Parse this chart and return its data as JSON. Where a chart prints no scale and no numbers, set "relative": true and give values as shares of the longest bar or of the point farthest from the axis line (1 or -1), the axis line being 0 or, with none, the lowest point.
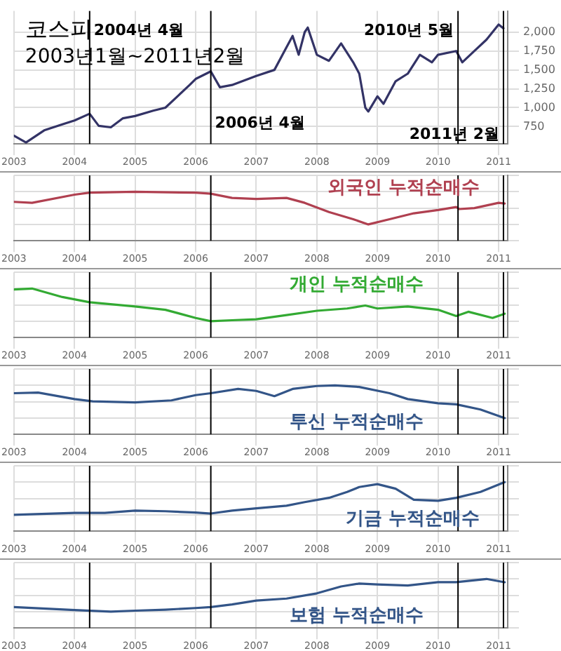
{
  "chart_data": [
    {
      "type": "line",
      "title": "코스피",
      "subtitle": "2003년1월~2011년2월",
      "xlim": [
        2003,
        2011.15
      ],
      "xticks": [
        2003,
        2004,
        2005,
        2006,
        2007,
        2008,
        2009,
        2010,
        2011
      ],
      "ylim": [
        520,
        2280
      ],
      "yticks": [
        {
          "value": 750,
          "label": "750"
        },
        {
          "value": 1000,
          "label": "1,000"
        },
        {
          "value": 1250,
          "label": "1,250"
        },
        {
          "value": 1500,
          "label": "1,500"
        },
        {
          "value": 1750,
          "label": "1,750"
        },
        {
          "value": 2000,
          "label": "2,000"
        }
      ],
      "grid": true,
      "legend": false,
      "marker": "none",
      "series": [
        {
          "color": "#333366",
          "x": [
            2003.0,
            2003.2,
            2003.5,
            2003.8,
            2004.0,
            2004.25,
            2004.4,
            2004.6,
            2004.8,
            2005.0,
            2005.3,
            2005.5,
            2005.7,
            2005.9,
            2006.0,
            2006.25,
            2006.4,
            2006.6,
            2006.8,
            2007.0,
            2007.3,
            2007.5,
            2007.6,
            2007.7,
            2007.8,
            2007.85,
            2008.0,
            2008.2,
            2008.4,
            2008.6,
            2008.7,
            2008.8,
            2008.85,
            2009.0,
            2009.1,
            2009.3,
            2009.5,
            2009.7,
            2009.9,
            2010.0,
            2010.3,
            2010.4,
            2010.6,
            2010.8,
            2011.0,
            2011.08
          ],
          "values": [
            630,
            540,
            700,
            780,
            830,
            920,
            760,
            740,
            860,
            890,
            960,
            1000,
            1150,
            1300,
            1380,
            1480,
            1270,
            1300,
            1360,
            1420,
            1500,
            1800,
            1950,
            1700,
            2000,
            2060,
            1700,
            1620,
            1850,
            1600,
            1450,
            1000,
            950,
            1150,
            1050,
            1350,
            1450,
            1700,
            1600,
            1700,
            1750,
            1600,
            1750,
            1900,
            2100,
            2050
          ]
        }
      ],
      "ref_lines": [
        {
          "axis": "x",
          "value": 2004.25,
          "label": "2004년 4월"
        },
        {
          "axis": "x",
          "value": 2006.25,
          "label": "2006년 4월"
        },
        {
          "axis": "x",
          "value": 2010.33,
          "label": "2010년 5월"
        },
        {
          "axis": "x",
          "value": 2011.08,
          "label": "2011년 2월"
        }
      ]
    },
    {
      "type": "line",
      "relative": true,
      "xlim": [
        2003,
        2011.15
      ],
      "xticks": [
        2003,
        2004,
        2005,
        2006,
        2007,
        2008,
        2009,
        2010,
        2011
      ],
      "grid": true,
      "legend": false,
      "marker": "none",
      "tick_labels": "x",
      "series": [
        {
          "name": "외국인 누적순매수",
          "color": "#b04050",
          "x": [
            2003.0,
            2003.3,
            2004.0,
            2004.25,
            2005.0,
            2006.0,
            2006.25,
            2006.6,
            2007.0,
            2007.5,
            2007.8,
            2008.2,
            2008.6,
            2008.85,
            2009.2,
            2009.6,
            2010.0,
            2010.3,
            2010.35,
            2010.6,
            2011.0,
            2011.1
          ],
          "values": [
            0.69,
            0.66,
            0.91,
            0.97,
            1.0,
            0.97,
            0.94,
            0.81,
            0.78,
            0.81,
            0.66,
            0.38,
            0.16,
            0,
            0.16,
            0.34,
            0.44,
            0.53,
            0.47,
            0.5,
            0.66,
            0.64
          ]
        }
      ],
      "ref_lines": [
        {
          "axis": "x",
          "value": 2004.25
        },
        {
          "axis": "x",
          "value": 2006.25
        },
        {
          "axis": "x",
          "value": 2010.33
        },
        {
          "axis": "x",
          "value": 2011.08
        }
      ]
    },
    {
      "type": "line",
      "relative": true,
      "xlim": [
        2003,
        2011.15
      ],
      "xticks": [
        2003,
        2004,
        2005,
        2006,
        2007,
        2008,
        2009,
        2010,
        2011
      ],
      "grid": true,
      "legend": false,
      "marker": "none",
      "tick_labels": "x",
      "series": [
        {
          "name": "개인 누적순매수",
          "color": "#33aa33",
          "x": [
            2003.0,
            2003.3,
            2003.8,
            2004.25,
            2005.0,
            2005.5,
            2006.0,
            2006.25,
            2006.6,
            2007.0,
            2007.5,
            2008.0,
            2008.5,
            2008.8,
            2009.0,
            2009.5,
            2010.0,
            2010.3,
            2010.5,
            2010.9,
            2011.1
          ],
          "values": [
            0.97,
            1.0,
            0.74,
            0.58,
            0.45,
            0.35,
            0.1,
            0,
            0.03,
            0.06,
            0.19,
            0.32,
            0.39,
            0.48,
            0.39,
            0.45,
            0.35,
            0.16,
            0.29,
            0.1,
            0.23
          ]
        }
      ],
      "ref_lines": [
        {
          "axis": "x",
          "value": 2004.25
        },
        {
          "axis": "x",
          "value": 2006.25
        },
        {
          "axis": "x",
          "value": 2010.33
        },
        {
          "axis": "x",
          "value": 2011.08
        }
      ]
    },
    {
      "type": "line",
      "relative": true,
      "xlim": [
        2003,
        2011.15
      ],
      "xticks": [
        2003,
        2004,
        2005,
        2006,
        2007,
        2008,
        2009,
        2010,
        2011
      ],
      "grid": true,
      "legend": false,
      "marker": "none",
      "tick_labels": "x",
      "series": [
        {
          "name": "투신 누적순매수",
          "color": "#335588",
          "x": [
            2003.0,
            2003.4,
            2004.0,
            2004.3,
            2005.0,
            2005.6,
            2006.0,
            2006.25,
            2006.7,
            2007.0,
            2007.3,
            2007.6,
            2008.0,
            2008.3,
            2008.7,
            2009.2,
            2009.5,
            2010.0,
            2010.3,
            2010.7,
            2011.1
          ],
          "values": [
            0.76,
            0.78,
            0.58,
            0.51,
            0.48,
            0.54,
            0.7,
            0.76,
            0.89,
            0.83,
            0.67,
            0.89,
            0.98,
            1.0,
            0.95,
            0.76,
            0.58,
            0.45,
            0.42,
            0.26,
            0
          ]
        }
      ],
      "ref_lines": [
        {
          "axis": "x",
          "value": 2004.25
        },
        {
          "axis": "x",
          "value": 2006.25
        },
        {
          "axis": "x",
          "value": 2010.33
        },
        {
          "axis": "x",
          "value": 2011.08
        }
      ]
    },
    {
      "type": "line",
      "relative": true,
      "xlim": [
        2003,
        2011.15
      ],
      "xticks": [
        2003,
        2004,
        2005,
        2006,
        2007,
        2008,
        2009,
        2010,
        2011
      ],
      "grid": true,
      "legend": false,
      "marker": "none",
      "tick_labels": "x",
      "series": [
        {
          "name": "기금 누적순매수",
          "color": "#335588",
          "x": [
            2003.0,
            2004.0,
            2004.5,
            2005.0,
            2005.5,
            2006.0,
            2006.25,
            2006.6,
            2007.0,
            2007.5,
            2007.8,
            2008.2,
            2008.5,
            2008.7,
            2009.0,
            2009.3,
            2009.6,
            2010.0,
            2010.3,
            2010.7,
            2011.1
          ],
          "values": [
            0,
            0.06,
            0.06,
            0.13,
            0.11,
            0.07,
            0.04,
            0.13,
            0.2,
            0.28,
            0.39,
            0.52,
            0.7,
            0.85,
            0.94,
            0.8,
            0.46,
            0.43,
            0.52,
            0.7,
            1.0
          ]
        }
      ],
      "ref_lines": [
        {
          "axis": "x",
          "value": 2004.25
        },
        {
          "axis": "x",
          "value": 2006.25
        },
        {
          "axis": "x",
          "value": 2010.33
        },
        {
          "axis": "x",
          "value": 2011.08
        }
      ]
    },
    {
      "type": "line",
      "relative": true,
      "xlim": [
        2003,
        2011.15
      ],
      "xticks": [
        2003,
        2004,
        2005,
        2006,
        2007,
        2008,
        2009,
        2010,
        2011
      ],
      "grid": true,
      "legend": false,
      "marker": "none",
      "tick_labels": "x",
      "series": [
        {
          "name": "보험 누적순매수",
          "color": "#335588",
          "x": [
            2003.0,
            2004.0,
            2004.6,
            2005.0,
            2005.5,
            2006.0,
            2006.25,
            2006.6,
            2007.0,
            2007.5,
            2008.0,
            2008.4,
            2008.7,
            2009.0,
            2009.5,
            2010.0,
            2010.3,
            2010.8,
            2011.1
          ],
          "values": [
            0.14,
            0.05,
            0,
            0.03,
            0.06,
            0.11,
            0.14,
            0.22,
            0.34,
            0.4,
            0.56,
            0.77,
            0.86,
            0.83,
            0.8,
            0.9,
            0.9,
            1.0,
            0.9
          ]
        }
      ],
      "ref_lines": [
        {
          "axis": "x",
          "value": 2004.25
        },
        {
          "axis": "x",
          "value": 2006.25
        },
        {
          "axis": "x",
          "value": 2010.33
        },
        {
          "axis": "x",
          "value": 2011.08
        }
      ]
    }
  ]
}
